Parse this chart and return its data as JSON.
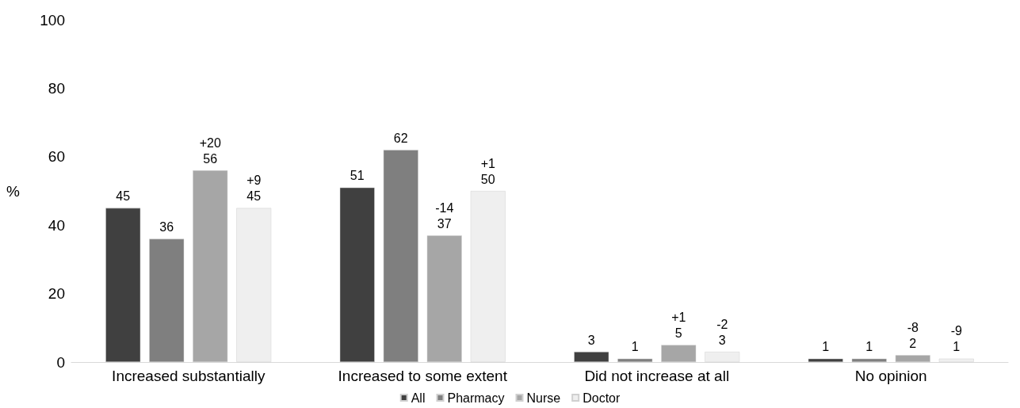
{
  "chart_data": {
    "type": "bar",
    "ylabel": "%",
    "categories": [
      "Increased substantially",
      "Increased to some extent",
      "Did not increase at all",
      "No opinion"
    ],
    "series": [
      {
        "name": "All",
        "color": "#404040",
        "values": [
          45,
          51,
          3,
          1
        ],
        "value_labels": [
          "45",
          "51",
          "3",
          "1"
        ]
      },
      {
        "name": "Pharmacy",
        "color": "#7f7f7f",
        "values": [
          36,
          62,
          1,
          1
        ],
        "value_labels": [
          "36",
          "62",
          "1",
          "1"
        ]
      },
      {
        "name": "Nurse",
        "color": "#a6a6a6",
        "values": [
          56,
          37,
          5,
          2
        ],
        "value_labels": [
          "+20\n56",
          "-14\n37",
          "+1\n5",
          "-8\n2"
        ]
      },
      {
        "name": "Doctor",
        "color": "#efefef",
        "values": [
          45,
          50,
          3,
          1
        ],
        "value_labels": [
          "+9\n45",
          "+1\n50",
          "-2\n3",
          "-9\n1"
        ]
      }
    ],
    "ylim": [
      0,
      100
    ],
    "yticks": [
      0,
      20,
      40,
      60,
      80,
      100
    ],
    "grid": false,
    "legend": "bottom"
  }
}
